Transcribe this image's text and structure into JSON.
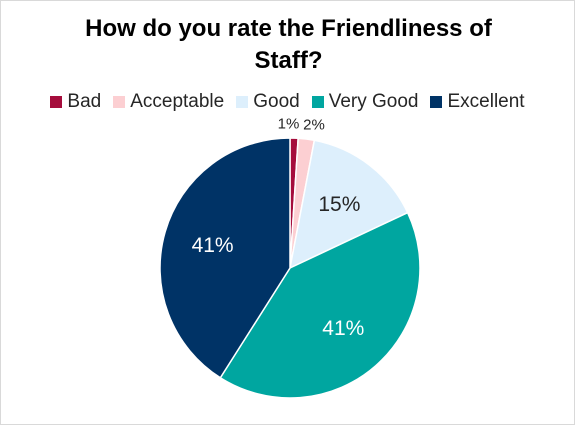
{
  "chart_data": {
    "type": "pie",
    "title": "How do you rate the Friendliness of Staff?",
    "categories": [
      "Bad",
      "Acceptable",
      "Good",
      "Very Good",
      "Excellent"
    ],
    "values": [
      1,
      2,
      15,
      41,
      41
    ],
    "value_labels": [
      "1%",
      "2%",
      "15%",
      "41%",
      "41%"
    ],
    "colors": [
      "#A50D3C",
      "#FCCFD2",
      "#DDEFFC",
      "#00A6A0",
      "#003366"
    ],
    "label_colors": [
      "#262626",
      "#262626",
      "#262626",
      "#ffffff",
      "#ffffff"
    ],
    "legend_position": "top"
  }
}
